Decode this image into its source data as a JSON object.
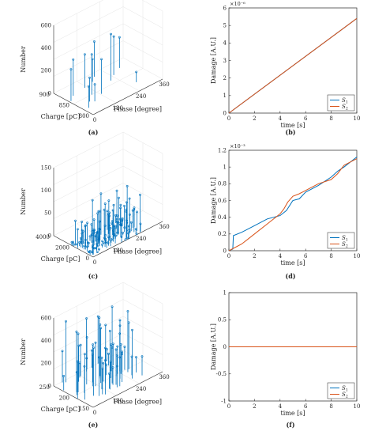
{
  "figure": {
    "panels": [
      "(a)",
      "(b)",
      "(c)",
      "(d)",
      "(e)",
      "(f)"
    ]
  },
  "chart_data": [
    {
      "id": "a",
      "type": "3d-stem",
      "title": "",
      "xlabel": "Phase [degree]",
      "ylabel": "Charge [pC]",
      "zlabel": "Number",
      "xlim": [
        0,
        360
      ],
      "ylim": [
        800,
        900
      ],
      "zlim": [
        0,
        600
      ],
      "xticks": [
        "0",
        "120",
        "240",
        "360"
      ],
      "yticks": [
        "800",
        "850",
        "900"
      ],
      "zticks": [
        "0",
        "200",
        "400",
        "600"
      ],
      "points": [
        {
          "phase": 8,
          "charge": 860,
          "count": 280
        },
        {
          "phase": 22,
          "charge": 822,
          "count": 190
        },
        {
          "phase": 40,
          "charge": 870,
          "count": 320
        },
        {
          "phase": 55,
          "charge": 836,
          "count": 210
        },
        {
          "phase": 70,
          "charge": 830,
          "count": 150
        },
        {
          "phase": 95,
          "charge": 850,
          "count": 355
        },
        {
          "phase": 110,
          "charge": 875,
          "count": 295
        },
        {
          "phase": 125,
          "charge": 840,
          "count": 305
        },
        {
          "phase": 160,
          "charge": 880,
          "count": 200
        },
        {
          "phase": 190,
          "charge": 890,
          "count": 310
        },
        {
          "phase": 215,
          "charge": 860,
          "count": 410
        },
        {
          "phase": 250,
          "charge": 870,
          "count": 340
        },
        {
          "phase": 275,
          "charge": 825,
          "count": 90
        },
        {
          "phase": 300,
          "charge": 880,
          "count": 270
        }
      ]
    },
    {
      "id": "b",
      "type": "line",
      "title": "",
      "xlabel": "time [s]",
      "ylabel": "Damage [A.U.]",
      "xlim": [
        0,
        10
      ],
      "ylim": [
        0,
        6e-06
      ],
      "xticks": [
        0,
        2,
        4,
        6,
        8,
        10
      ],
      "yticks": [
        0,
        1,
        2,
        3,
        4,
        5,
        6
      ],
      "y_exponent": "×10⁻⁶",
      "legend_position": "bottom-right",
      "series": [
        {
          "name": "S",
          "sub": "1",
          "color": "#0072BD",
          "x": [
            0,
            10
          ],
          "y": [
            0,
            5.4e-06
          ]
        },
        {
          "name": "S",
          "sub": "2",
          "color": "#D95319",
          "x": [
            0,
            10
          ],
          "y": [
            0,
            5.4e-06
          ]
        }
      ]
    },
    {
      "id": "c",
      "type": "3d-stem",
      "title": "",
      "xlabel": "Phase [degree]",
      "ylabel": "Charge [pC]",
      "zlabel": "Number",
      "xlim": [
        0,
        360
      ],
      "ylim": [
        0,
        4000
      ],
      "zlim": [
        0,
        150
      ],
      "xticks": [
        "0",
        "120",
        "240",
        "360"
      ],
      "yticks": [
        "0",
        "2000",
        "4000"
      ],
      "zticks": [
        "0",
        "50",
        "100",
        "150"
      ],
      "clusters": [
        {
          "phase_from": 0,
          "phase_to": 45,
          "count_max": 60
        },
        {
          "phase_from": 45,
          "phase_to": 90,
          "count_max": 80
        },
        {
          "phase_from": 90,
          "phase_to": 150,
          "count_max": 95
        },
        {
          "phase_from": 150,
          "phase_to": 215,
          "count_max": 90
        },
        {
          "phase_from": 215,
          "phase_to": 260,
          "count_max": 100
        }
      ]
    },
    {
      "id": "d",
      "type": "line",
      "title": "",
      "xlabel": "time [s]",
      "ylabel": "Damage [A.U.]",
      "xlim": [
        0,
        10
      ],
      "ylim": [
        0,
        0.0012
      ],
      "xticks": [
        0,
        2,
        4,
        6,
        8,
        10
      ],
      "yticks": [
        0,
        0.2,
        0.4,
        0.6,
        0.8,
        1,
        1.2
      ],
      "y_exponent": "×10⁻³",
      "legend_position": "bottom-right",
      "series": [
        {
          "name": "S",
          "sub": "1",
          "color": "#0072BD",
          "x": [
            0,
            0.3,
            0.35,
            1,
            2,
            3,
            4,
            4.5,
            5,
            5.5,
            6,
            7,
            8,
            8.5,
            9,
            10
          ],
          "y": [
            0,
            2e-05,
            0.00018,
            0.00022,
            0.0003,
            0.00038,
            0.00042,
            0.00048,
            0.0006,
            0.00062,
            0.0007,
            0.00078,
            0.00088,
            0.00095,
            0.001,
            0.00112
          ]
        },
        {
          "name": "S",
          "sub": "2",
          "color": "#D95319",
          "x": [
            0,
            1,
            1.5,
            2,
            3,
            4,
            4.3,
            4.6,
            5,
            5.5,
            6,
            7,
            8,
            8.5,
            9,
            10
          ],
          "y": [
            0,
            8e-05,
            0.00014,
            0.0002,
            0.00032,
            0.00044,
            0.0005,
            0.00058,
            0.00065,
            0.00068,
            0.00072,
            0.0008,
            0.00085,
            0.00092,
            0.00102,
            0.0011
          ]
        }
      ]
    },
    {
      "id": "e",
      "type": "3d-stem",
      "title": "",
      "xlabel": "Phase [degree]",
      "ylabel": "Charge [pC]",
      "zlabel": "Number",
      "xlim": [
        0,
        360
      ],
      "ylim": [
        150,
        250
      ],
      "zlim": [
        0,
        600
      ],
      "xticks": [
        "0",
        "120",
        "240",
        "360"
      ],
      "yticks": [
        "150",
        "200",
        "250"
      ],
      "zticks": [
        "0",
        "200",
        "400",
        "600"
      ],
      "stem_count": 60
    },
    {
      "id": "f",
      "type": "line",
      "title": "",
      "xlabel": "time [s]",
      "ylabel": "Damage [A.U.]",
      "xlim": [
        0,
        10
      ],
      "ylim": [
        -1,
        1
      ],
      "xticks": [
        0,
        2,
        4,
        6,
        8,
        10
      ],
      "yticks": [
        -1,
        -0.5,
        0,
        0.5,
        1
      ],
      "legend_position": "bottom-right",
      "series": [
        {
          "name": "S",
          "sub": "1",
          "color": "#0072BD",
          "x": [
            0,
            10
          ],
          "y": [
            0,
            0
          ]
        },
        {
          "name": "S",
          "sub": "2",
          "color": "#D95319",
          "x": [
            0,
            10
          ],
          "y": [
            0,
            0
          ]
        }
      ]
    }
  ]
}
